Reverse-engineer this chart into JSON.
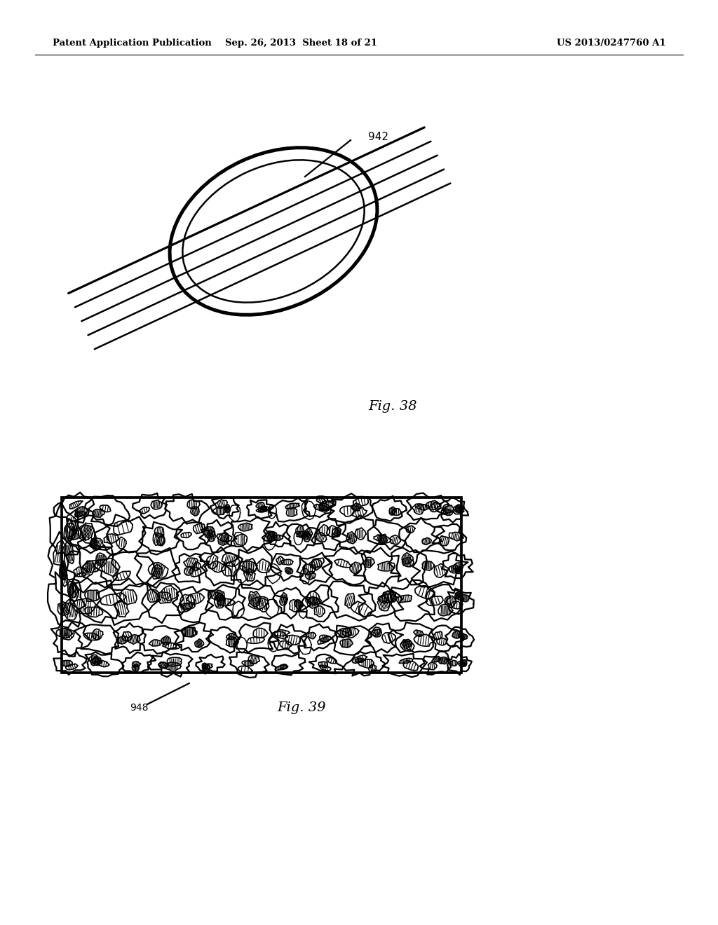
{
  "background_color": "#ffffff",
  "header_left": "Patent Application Publication",
  "header_mid": "Sep. 26, 2013  Sheet 18 of 21",
  "header_right": "US 2013/0247760 A1",
  "line_color": "#000000",
  "lw": 1.8
}
